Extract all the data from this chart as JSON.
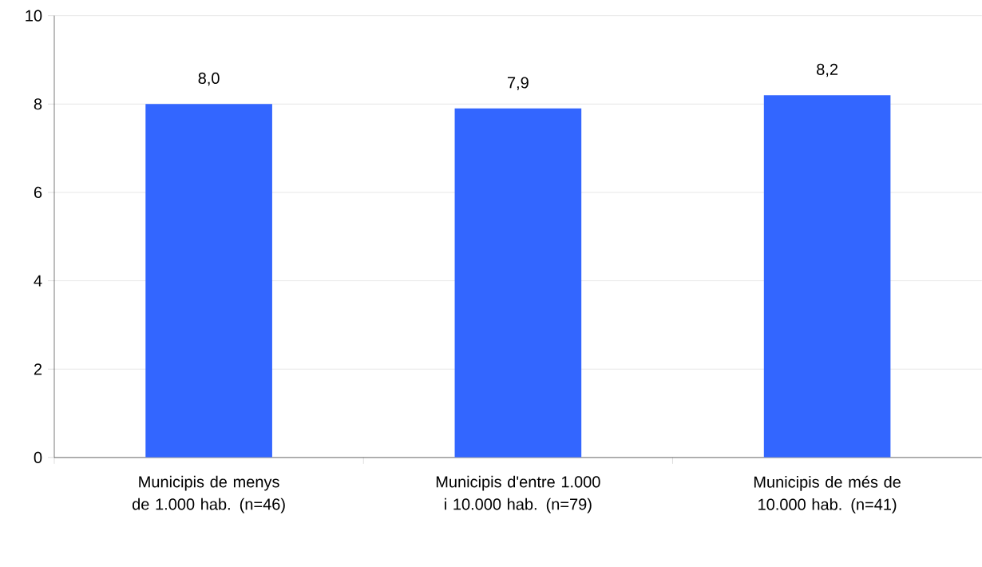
{
  "chart_data": {
    "type": "bar",
    "categories": [
      "Municipis de menys de 1.000 hab. (n=46)",
      "Municipis d'entre 1.000 i 10.000 hab. (n=79)",
      "Municipis de més de 10.000 hab. (n=41)"
    ],
    "values": [
      8.0,
      7.9,
      8.2
    ],
    "value_labels": [
      "8,0",
      "7,9",
      "8,2"
    ],
    "color": "#3366ff",
    "ylim": [
      0,
      10
    ],
    "yticks": [
      0,
      2,
      4,
      6,
      8,
      10
    ],
    "grid": "y"
  }
}
